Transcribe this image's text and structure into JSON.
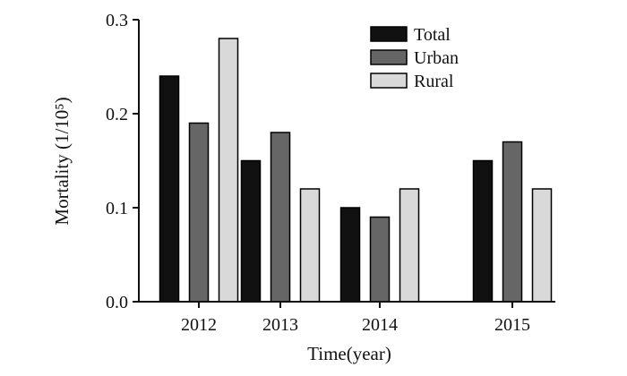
{
  "chart_data": {
    "type": "bar",
    "title": "",
    "xlabel": "Time(year)",
    "ylabel": "Mortality (1/10⁵)",
    "categories": [
      "2012",
      "2013",
      "2014",
      "2015"
    ],
    "series": [
      {
        "name": "Total",
        "values": [
          0.24,
          0.15,
          0.1,
          0.15
        ],
        "color": "#111111"
      },
      {
        "name": "Urban",
        "values": [
          0.19,
          0.18,
          0.09,
          0.17
        ],
        "color": "#666666"
      },
      {
        "name": "Rural",
        "values": [
          0.28,
          0.12,
          0.12,
          0.12
        ],
        "color": "#d9d9d9"
      }
    ],
    "ylim": [
      0,
      0.3
    ],
    "yticks": [
      "0.0",
      "0.1",
      "0.2",
      "0.3"
    ],
    "grid": false,
    "legend_position": "top-right"
  }
}
